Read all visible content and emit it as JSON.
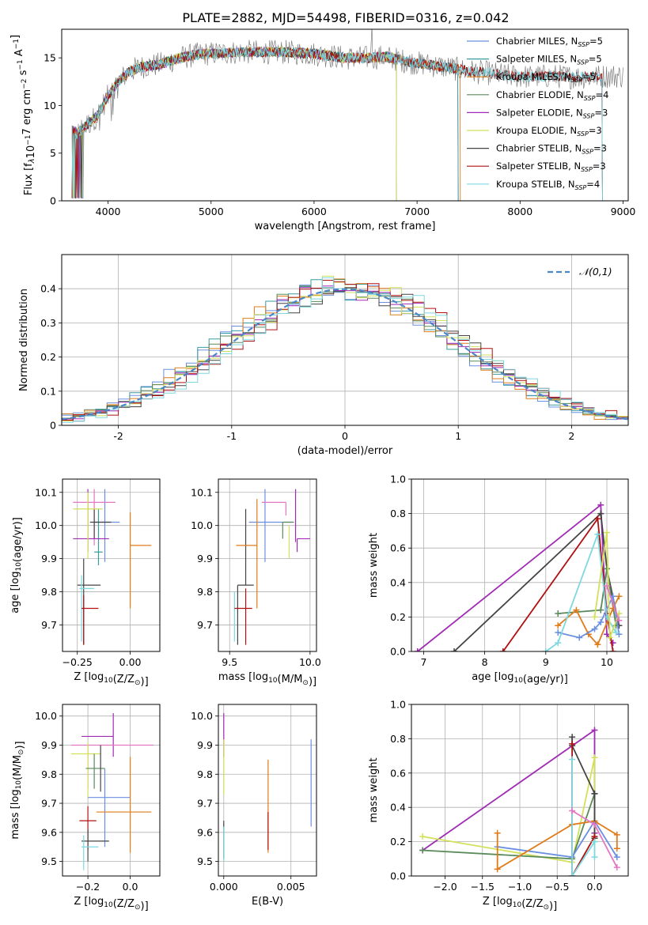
{
  "figure": {
    "title": "PLATE=2882, MJD=54498, FIBERID=0316, z=0.042"
  },
  "chart_data": [
    {
      "id": "spectrum",
      "type": "line",
      "xlabel": "wavelength [Angstrom, rest frame]",
      "ylabel": "Flux [f_λ10^-17 erg cm^-2 s^-1 A^-1]",
      "xlim": [
        3550,
        9050
      ],
      "ylim": [
        0,
        18
      ],
      "xticks": [
        4000,
        5000,
        6000,
        7000,
        8000,
        9000
      ],
      "yticks": [
        0,
        5,
        10,
        15
      ],
      "grid": false,
      "legend_position": "right",
      "data_series": {
        "name": "data",
        "color": "#808080",
        "x_range": [
          3650,
          9000
        ]
      },
      "continuum": {
        "x": [
          3650,
          3700,
          3800,
          3900,
          4000,
          4100,
          4200,
          4300,
          4400,
          4500,
          4700,
          4900,
          5100,
          5300,
          5500,
          5700,
          5900,
          6100,
          6300,
          6500,
          6700,
          6900,
          7100,
          7300,
          7500,
          7700,
          7900,
          8100,
          8300,
          8500,
          8700,
          8850
        ],
        "y": [
          7.5,
          7.0,
          8.0,
          9.0,
          11.0,
          12.5,
          13.5,
          14.0,
          14.2,
          14.3,
          15.0,
          15.4,
          15.5,
          15.6,
          15.6,
          15.6,
          15.5,
          15.3,
          15.0,
          15.0,
          15.1,
          14.6,
          14.3,
          14.0,
          13.6,
          13.4,
          13.1,
          13.0,
          13.1,
          13.0,
          13.0,
          13.1
        ]
      },
      "series": [
        {
          "name": "Chabrier MILES",
          "nssp": "5",
          "color": "#6a8fe0",
          "x_end": 7400
        },
        {
          "name": "Salpeter MILES",
          "nssp": "5",
          "color": "#3b9aa0",
          "x_end": 7400
        },
        {
          "name": "Kroupa MILES",
          "nssp": "5",
          "color": "#e07b1a",
          "x_end": 7420
        },
        {
          "name": "Chabrier ELODIE",
          "nssp": "4",
          "color": "#5a8a5a",
          "x_end": 6800
        },
        {
          "name": "Salpeter ELODIE",
          "nssp": "3",
          "color": "#a12bb5",
          "x_end": 6800
        },
        {
          "name": "Kroupa ELODIE",
          "nssp": "3",
          "color": "#d2e05a",
          "x_end": 6800
        },
        {
          "name": "Chabrier STELIB",
          "nssp": "3",
          "color": "#444444",
          "x_end": 8800
        },
        {
          "name": "Salpeter STELIB",
          "nssp": "3",
          "color": "#b01010",
          "x_end": 8800
        },
        {
          "name": "Kroupa STELIB",
          "nssp": "4",
          "color": "#7dd8e0",
          "x_end": 8800
        }
      ]
    },
    {
      "id": "residuals",
      "type": "histogram",
      "xlabel": "(data-model)/error",
      "ylabel": "Normed distribution",
      "xlim": [
        -2.5,
        2.5
      ],
      "ylim": [
        0,
        0.5
      ],
      "xticks": [
        -2,
        -1,
        0,
        1,
        2
      ],
      "yticks": [
        0.0,
        0.1,
        0.2,
        0.3,
        0.4
      ],
      "grid": true,
      "legend_position": "top-right",
      "reference": {
        "label": "𝒩(0,1)",
        "color": "#4a86c8",
        "mean": 0,
        "sigma": 1
      },
      "bin_width": 0.1
    },
    {
      "id": "age_vs_Z",
      "type": "errorbar",
      "xlabel": "Z [log10(Z/Z⊙)]",
      "ylabel": "age  [log10(age/yr)]",
      "xlim": [
        -0.32,
        0.14
      ],
      "ylim": [
        9.62,
        10.14
      ],
      "xticks": [
        -0.25,
        0.0
      ],
      "xticklabels": [
        "−0.25",
        "0.00"
      ],
      "yticks": [
        9.7,
        9.8,
        9.9,
        10.0,
        10.1
      ],
      "grid": true,
      "points": [
        {
          "x": -0.12,
          "y": 10.01,
          "xerr": [
            0.05,
            0.07
          ],
          "yerr": [
            0.12,
            0.1
          ],
          "color": "#6a8fe0"
        },
        {
          "x": -0.15,
          "y": 9.92,
          "xerr": [
            0.02,
            0.02
          ],
          "yerr": [
            0.04,
            0.13
          ],
          "color": "#3b9aa0"
        },
        {
          "x": -0.17,
          "y": 10.07,
          "xerr": [
            0.1,
            0.1
          ],
          "yerr": [
            0.13,
            0.04
          ],
          "color": "#e377c2"
        },
        {
          "x": -0.17,
          "y": 10.01,
          "xerr": [
            0.02,
            0.08
          ],
          "yerr": [
            0.05,
            0.04
          ],
          "color": "#444444"
        },
        {
          "x": -0.2,
          "y": 9.96,
          "xerr": [
            0.07,
            0.1
          ],
          "yerr": [
            0.04,
            0.15
          ],
          "color": "#a12bb5"
        },
        {
          "x": -0.2,
          "y": 10.05,
          "xerr": [
            0.07,
            0.07
          ],
          "yerr": [
            0.15,
            0.05
          ],
          "color": "#d2e05a"
        },
        {
          "x": 0.0,
          "y": 9.94,
          "xerr": [
            0.0,
            0.1
          ],
          "yerr": [
            0.19,
            0.1
          ],
          "color": "#e07b1a"
        },
        {
          "x": -0.22,
          "y": 9.82,
          "xerr": [
            0.03,
            0.08
          ],
          "yerr": [
            0.18,
            0.08
          ],
          "color": "#444444"
        },
        {
          "x": -0.23,
          "y": 9.81,
          "xerr": [
            0.01,
            0.06
          ],
          "yerr": [
            0.16,
            0.04
          ],
          "color": "#7dd8e0"
        },
        {
          "x": -0.22,
          "y": 9.75,
          "xerr": [
            0.01,
            0.07
          ],
          "yerr": [
            0.11,
            0.04
          ],
          "color": "#b01010"
        }
      ]
    },
    {
      "id": "age_vs_mass",
      "type": "errorbar",
      "xlabel": "mass [log10(M/M⊙)]",
      "ylabel": "",
      "xlim": [
        9.43,
        10.04
      ],
      "ylim": [
        9.62,
        10.14
      ],
      "xticks": [
        9.5,
        10.0
      ],
      "xticklabels": [
        "9.5",
        "10.0"
      ],
      "yticks": [
        9.7,
        9.8,
        9.9,
        10.0,
        10.1
      ],
      "grid": true,
      "points": [
        {
          "x": 9.72,
          "y": 10.01,
          "xerr": [
            0.1,
            0.17
          ],
          "yerr": [
            0.12,
            0.1
          ],
          "color": "#6a8fe0"
        },
        {
          "x": 9.83,
          "y": 10.01,
          "xerr": [
            0.0,
            0.07
          ],
          "yerr": [
            0.05,
            0.0
          ],
          "color": "#5a8a5a"
        },
        {
          "x": 9.6,
          "y": 10.05,
          "xerr": [
            0.0,
            0.0
          ],
          "yerr": [
            0.23,
            0.0
          ],
          "color": "#444444"
        },
        {
          "x": 9.85,
          "y": 10.07,
          "xerr": [
            0.15,
            0.0
          ],
          "yerr": [
            0.04,
            0.0
          ],
          "color": "#e377c2"
        },
        {
          "x": 9.91,
          "y": 10.05,
          "xerr": [
            0.0,
            0.0
          ],
          "yerr": [
            0.1,
            0.06
          ],
          "color": "#a12bb5"
        },
        {
          "x": 9.92,
          "y": 9.96,
          "xerr": [
            0.0,
            0.08
          ],
          "yerr": [
            0.04,
            0.0
          ],
          "color": "#a12bb5"
        },
        {
          "x": 9.87,
          "y": 10.0,
          "xerr": [
            0.0,
            0.0
          ],
          "yerr": [
            0.1,
            0.0
          ],
          "color": "#d2e05a"
        },
        {
          "x": 9.67,
          "y": 9.94,
          "xerr": [
            0.13,
            0.0
          ],
          "yerr": [
            0.19,
            0.14
          ],
          "color": "#e07b1a"
        },
        {
          "x": 9.55,
          "y": 9.82,
          "xerr": [
            0.0,
            0.1
          ],
          "yerr": [
            0.18,
            0.0
          ],
          "color": "#444444"
        },
        {
          "x": 9.53,
          "y": 9.75,
          "xerr": [
            0.0,
            0.0
          ],
          "yerr": [
            0.1,
            0.05
          ],
          "color": "#7dd8e0"
        },
        {
          "x": 9.6,
          "y": 9.75,
          "xerr": [
            0.07,
            0.04
          ],
          "yerr": [
            0.11,
            0.06
          ],
          "color": "#b01010"
        }
      ]
    },
    {
      "id": "weight_vs_age",
      "type": "line",
      "xlabel": "age  [log10(age/yr)]",
      "ylabel": "mass weight",
      "xlim": [
        6.8,
        10.35
      ],
      "ylim": [
        0,
        1
      ],
      "xticks": [
        7,
        8,
        9,
        10
      ],
      "xticklabels": [
        "7",
        "8",
        "9",
        "10"
      ],
      "yticks": [
        0.0,
        0.2,
        0.4,
        0.6,
        0.8,
        1.0
      ],
      "grid": true,
      "series": [
        {
          "color": "#a12bb5",
          "x": [
            6.9,
            9.9,
            10.0,
            10.1
          ],
          "y": [
            0.0,
            0.85,
            0.1,
            0.05
          ]
        },
        {
          "color": "#444444",
          "x": [
            7.5,
            9.9,
            10.0,
            10.2
          ],
          "y": [
            0.0,
            0.8,
            0.48,
            0.15
          ]
        },
        {
          "color": "#b01010",
          "x": [
            8.3,
            9.85,
            10.0,
            10.1
          ],
          "y": [
            0.0,
            0.77,
            0.22,
            0.0
          ]
        },
        {
          "color": "#5a8a5a",
          "x": [
            9.2,
            9.9,
            10.0,
            10.15
          ],
          "y": [
            0.22,
            0.24,
            0.48,
            0.15
          ]
        },
        {
          "color": "#e07b1a",
          "x": [
            9.2,
            9.5,
            9.7,
            9.85,
            10.1,
            10.2
          ],
          "y": [
            0.15,
            0.24,
            0.1,
            0.04,
            0.25,
            0.32
          ]
        },
        {
          "color": "#6a8fe0",
          "x": [
            9.2,
            9.55,
            9.8,
            9.9,
            10.1,
            10.2
          ],
          "y": [
            0.11,
            0.08,
            0.13,
            0.17,
            0.32,
            0.1
          ]
        },
        {
          "color": "#7dd8e0",
          "x": [
            9.0,
            9.2,
            9.85,
            10.0,
            10.15
          ],
          "y": [
            0.0,
            0.05,
            0.68,
            0.2,
            0.11
          ]
        },
        {
          "color": "#d2e05a",
          "x": [
            9.8,
            10.0,
            10.05,
            10.2
          ],
          "y": [
            0.2,
            0.69,
            0.08,
            0.22
          ]
        },
        {
          "color": "#e377c2",
          "x": [
            10.0,
            10.2
          ],
          "y": [
            0.38,
            0.18
          ]
        }
      ]
    },
    {
      "id": "mass_vs_Z",
      "type": "errorbar",
      "xlabel": "Z [log10(Z/Z⊙)]",
      "ylabel": "mass [log10(M/M⊙)]",
      "xlim": [
        -0.32,
        0.14
      ],
      "ylim": [
        9.45,
        10.04
      ],
      "xticks": [
        -0.2,
        0.0
      ],
      "xticklabels": [
        "−0.2",
        "0.0"
      ],
      "yticks": [
        9.5,
        9.6,
        9.7,
        9.8,
        9.9,
        10.0
      ],
      "grid": true,
      "points": [
        {
          "x": -0.08,
          "y": 9.93,
          "xerr": [
            0.15,
            0.0
          ],
          "yerr": [
            0.07,
            0.08
          ],
          "color": "#a12bb5"
        },
        {
          "x": -0.2,
          "y": 9.9,
          "xerr": [
            0.08,
            0.31
          ],
          "yerr": [
            0.15,
            0.0
          ],
          "color": "#e377c2"
        },
        {
          "x": -0.2,
          "y": 9.87,
          "xerr": [
            0.08,
            0.06
          ],
          "yerr": [
            0.15,
            0.04
          ],
          "color": "#d2e05a"
        },
        {
          "x": -0.17,
          "y": 9.82,
          "xerr": [
            0.04,
            0.05
          ],
          "yerr": [
            0.07,
            0.05
          ],
          "color": "#5a8a5a"
        },
        {
          "x": -0.14,
          "y": 9.82,
          "xerr": [
            0.0,
            0.0
          ],
          "yerr": [
            0.08,
            0.08
          ],
          "color": "#444444"
        },
        {
          "x": -0.12,
          "y": 9.72,
          "xerr": [
            0.08,
            0.12
          ],
          "yerr": [
            0.17,
            0.1
          ],
          "color": "#6a8fe0"
        },
        {
          "x": 0.0,
          "y": 9.67,
          "xerr": [
            0.16,
            0.1
          ],
          "yerr": [
            0.14,
            0.19
          ],
          "color": "#e07b1a"
        },
        {
          "x": -0.2,
          "y": 9.64,
          "xerr": [
            0.04,
            0.04
          ],
          "yerr": [
            0.1,
            0.05
          ],
          "color": "#b01010"
        },
        {
          "x": -0.2,
          "y": 9.57,
          "xerr": [
            0.03,
            0.1
          ],
          "yerr": [
            0.07,
            0.04
          ],
          "color": "#444444"
        },
        {
          "x": -0.22,
          "y": 9.55,
          "xerr": [
            0.01,
            0.07
          ],
          "yerr": [
            0.08,
            0.04
          ],
          "color": "#7dd8e0"
        }
      ]
    },
    {
      "id": "mass_vs_EBV",
      "type": "errorbar",
      "xlabel": "E(B-V)",
      "ylabel": "",
      "xlim": [
        -0.0004,
        0.0069
      ],
      "ylim": [
        9.45,
        10.04
      ],
      "xticks": [
        0.0,
        0.005
      ],
      "xticklabels": [
        "0.000",
        "0.005"
      ],
      "yticks": [
        9.5,
        9.6,
        9.7,
        9.8,
        9.9,
        10.0
      ],
      "grid": true,
      "points": [
        {
          "x": 0.0,
          "y": 9.93,
          "xerr": [
            0,
            0
          ],
          "yerr": [
            0.07,
            0.08
          ],
          "color": "#a12bb5"
        },
        {
          "x": 0.0,
          "y": 9.85,
          "xerr": [
            0,
            0
          ],
          "yerr": [
            0.12,
            0.07
          ],
          "color": "#d2e05a"
        },
        {
          "x": 0.0,
          "y": 9.57,
          "xerr": [
            0,
            0
          ],
          "yerr": [
            0.06,
            0.07
          ],
          "color": "#444444"
        },
        {
          "x": 0.0,
          "y": 9.55,
          "xerr": [
            0,
            0
          ],
          "yerr": [
            0.05,
            0.07
          ],
          "color": "#7dd8e0"
        },
        {
          "x": 0.0033,
          "y": 9.7,
          "xerr": [
            0,
            0
          ],
          "yerr": [
            0.17,
            0.15
          ],
          "color": "#e07b1a"
        },
        {
          "x": 0.0033,
          "y": 9.61,
          "xerr": [
            0,
            0
          ],
          "yerr": [
            0.07,
            0.06
          ],
          "color": "#b01010"
        },
        {
          "x": 0.0065,
          "y": 9.77,
          "xerr": [
            0,
            0
          ],
          "yerr": [
            0.15,
            0.15
          ],
          "color": "#6a8fe0"
        }
      ]
    },
    {
      "id": "weight_vs_Z",
      "type": "line",
      "xlabel": "Z [log10(Z/Z⊙)]",
      "ylabel": "mass weight",
      "xlim": [
        -2.45,
        0.45
      ],
      "ylim": [
        0,
        1
      ],
      "xticks": [
        -2.0,
        -1.5,
        -1.0,
        -0.5,
        0.0
      ],
      "xticklabels": [
        "−2.0",
        "−1.5",
        "−1.0",
        "−0.5",
        "0.0"
      ],
      "yticks": [
        0.0,
        0.2,
        0.4,
        0.6,
        0.8,
        1.0
      ],
      "grid": true,
      "series": [
        {
          "color": "#a12bb5",
          "x": [
            -2.3,
            0.0,
            0.0,
            0.0
          ],
          "y": [
            0.15,
            0.85,
            0.48,
            0.25
          ]
        },
        {
          "color": "#d2e05a",
          "x": [
            -2.3,
            -0.3,
            0.0,
            0.0
          ],
          "y": [
            0.23,
            0.08,
            0.69,
            0.2
          ]
        },
        {
          "color": "#5a8a5a",
          "x": [
            -2.3,
            -0.3,
            0.0
          ],
          "y": [
            0.15,
            0.1,
            0.48
          ]
        },
        {
          "color": "#6a8fe0",
          "x": [
            -1.3,
            -0.3,
            0.0,
            0.3
          ],
          "y": [
            0.17,
            0.11,
            0.32,
            0.11
          ]
        },
        {
          "color": "#e07b1a",
          "x": [
            -1.3,
            -1.3,
            -0.3,
            0.0,
            0.3,
            0.3
          ],
          "y": [
            0.25,
            0.04,
            0.3,
            0.32,
            0.24,
            0.16
          ]
        },
        {
          "color": "#444444",
          "x": [
            -0.3,
            -0.3,
            0.0,
            0.0
          ],
          "y": [
            0.81,
            0.76,
            0.48,
            0.22
          ]
        },
        {
          "color": "#b01010",
          "x": [
            -0.3,
            -0.3,
            0.0
          ],
          "y": [
            0.77,
            0.0,
            0.23
          ]
        },
        {
          "color": "#7dd8e0",
          "x": [
            -0.3,
            -0.3,
            0.0,
            0.0
          ],
          "y": [
            0.68,
            0.0,
            0.2,
            0.11
          ]
        },
        {
          "color": "#e377c2",
          "x": [
            -0.3,
            0.0,
            0.3
          ],
          "y": [
            0.38,
            0.3,
            0.05
          ]
        }
      ]
    }
  ]
}
